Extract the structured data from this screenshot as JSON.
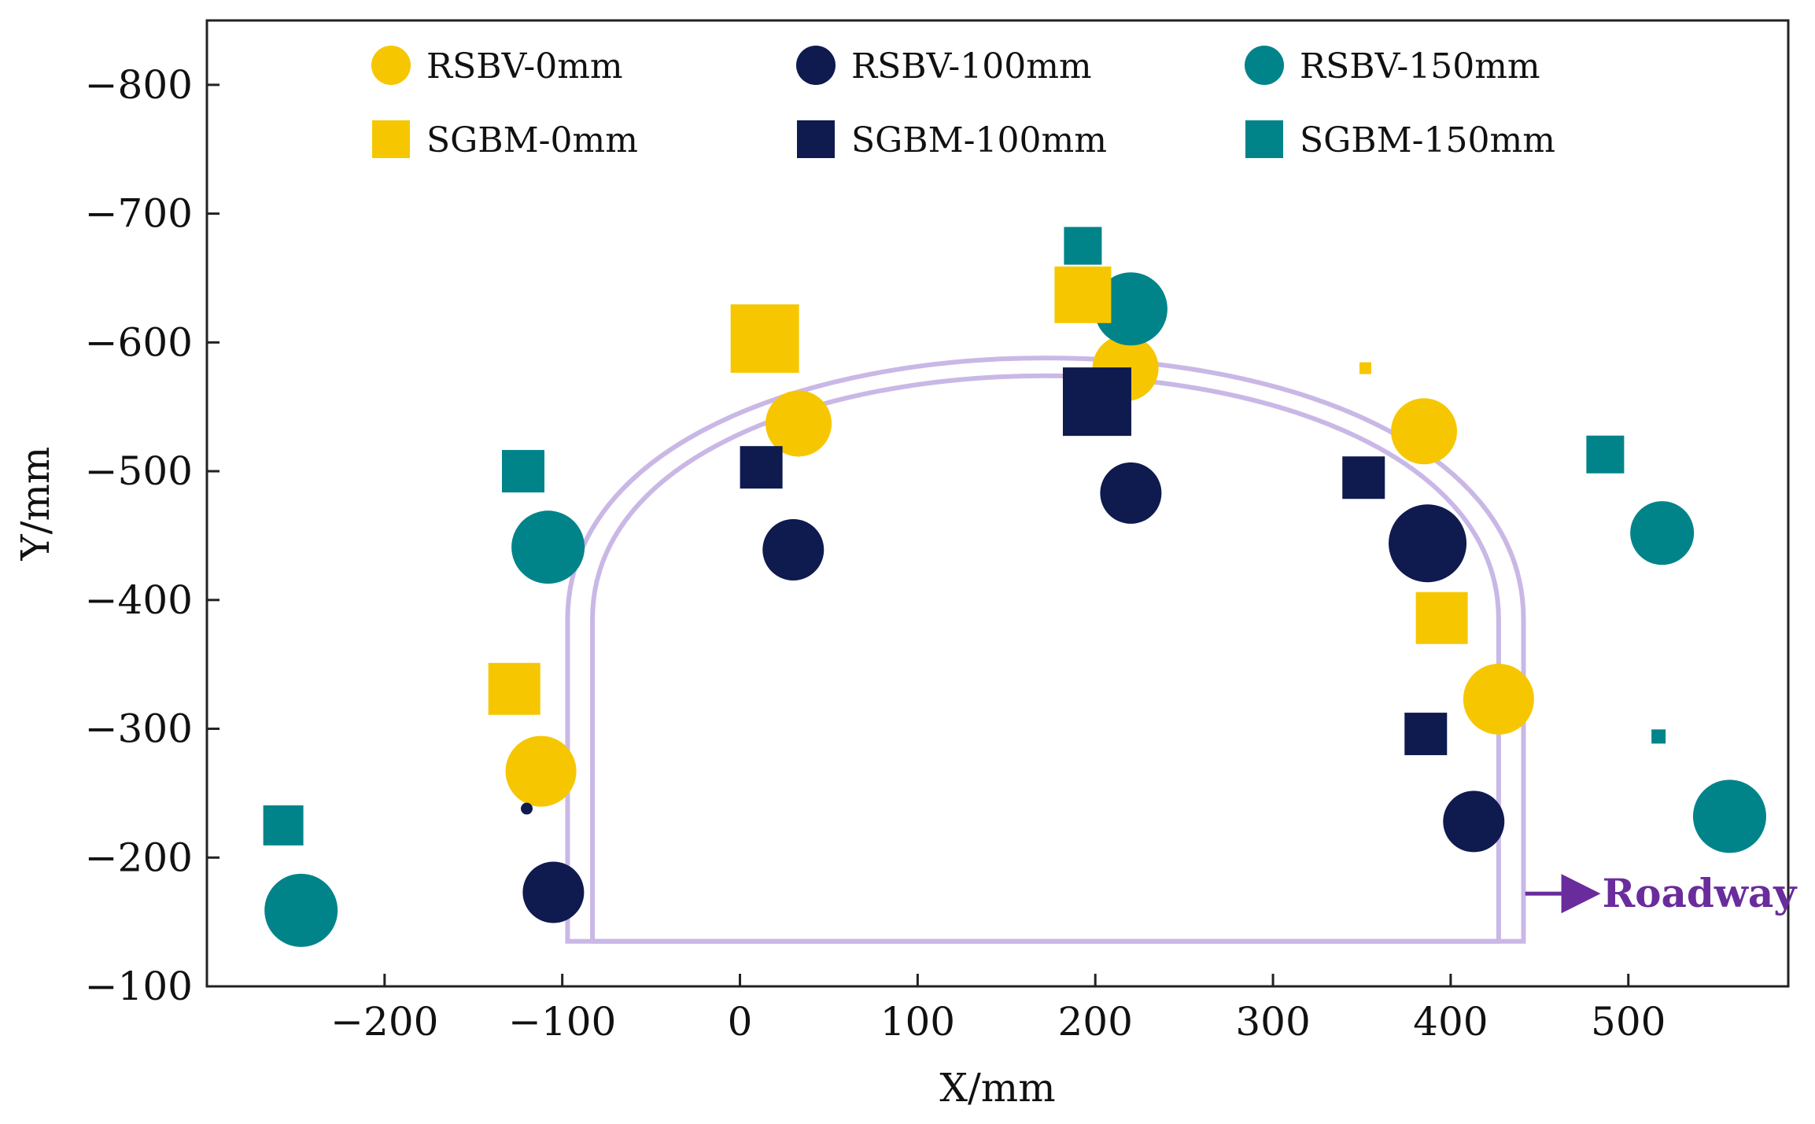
{
  "chart_data": {
    "type": "scatter",
    "title": "",
    "xlabel": "X/mm",
    "ylabel": "Y/mm",
    "xlim": [
      -300,
      590
    ],
    "ylim": [
      -100,
      -850
    ],
    "xticks": [
      -200,
      -100,
      0,
      100,
      200,
      300,
      400,
      500
    ],
    "yticks": [
      -100,
      -200,
      -300,
      -400,
      -500,
      -600,
      -700,
      -800
    ],
    "grid": false,
    "legend_position": "top",
    "colors": {
      "yellow": "#f6c700",
      "navy": "#0f1a4f",
      "teal": "#00848a",
      "roadway": "#c9b8e6",
      "annotation": "#6a2c9c"
    },
    "series": [
      {
        "name": "RSBV-0mm",
        "marker": "circle",
        "color": "#f6c700",
        "points": [
          {
            "x": -112,
            "y": -267,
            "size": 3.0
          },
          {
            "x": 33,
            "y": -537,
            "size": 2.8
          },
          {
            "x": 217,
            "y": -580,
            "size": 2.8
          },
          {
            "x": 385,
            "y": -531,
            "size": 2.8
          },
          {
            "x": 427,
            "y": -323,
            "size": 3.0
          }
        ]
      },
      {
        "name": "RSBV-100mm",
        "marker": "circle",
        "color": "#0f1a4f",
        "points": [
          {
            "x": -105,
            "y": -173,
            "size": 2.6
          },
          {
            "x": 30,
            "y": -439,
            "size": 2.6
          },
          {
            "x": 220,
            "y": -483,
            "size": 2.6
          },
          {
            "x": 387,
            "y": -444,
            "size": 3.3
          },
          {
            "x": 413,
            "y": -228,
            "size": 2.6
          },
          {
            "x": -120,
            "y": -238,
            "size": 0.5
          }
        ]
      },
      {
        "name": "RSBV-150mm",
        "marker": "circle",
        "color": "#00848a",
        "points": [
          {
            "x": -247,
            "y": -159,
            "size": 3.1
          },
          {
            "x": -108,
            "y": -441,
            "size": 3.1
          },
          {
            "x": 220,
            "y": -626,
            "size": 3.1
          },
          {
            "x": 519,
            "y": -452,
            "size": 2.7
          },
          {
            "x": 557,
            "y": -232,
            "size": 3.1
          }
        ]
      },
      {
        "name": "SGBM-0mm",
        "marker": "square",
        "color": "#f6c700",
        "points": [
          {
            "x": -127,
            "y": -331,
            "size": 2.2
          },
          {
            "x": 14,
            "y": -603,
            "size": 2.9
          },
          {
            "x": 193,
            "y": -637,
            "size": 2.4
          },
          {
            "x": 395,
            "y": -386,
            "size": 2.2
          },
          {
            "x": 352,
            "y": -580,
            "size": 0.5
          }
        ]
      },
      {
        "name": "SGBM-100mm",
        "marker": "square",
        "color": "#0f1a4f",
        "points": [
          {
            "x": 12,
            "y": -503,
            "size": 1.8
          },
          {
            "x": 201,
            "y": -554,
            "size": 2.9
          },
          {
            "x": 351,
            "y": -495,
            "size": 1.8
          },
          {
            "x": 386,
            "y": -296,
            "size": 1.8
          }
        ]
      },
      {
        "name": "SGBM-150mm",
        "marker": "square",
        "color": "#00848a",
        "points": [
          {
            "x": -122,
            "y": -500,
            "size": 1.8
          },
          {
            "x": -257,
            "y": -225,
            "size": 1.7
          },
          {
            "x": 193,
            "y": -675,
            "size": 1.6
          },
          {
            "x": 487,
            "y": -513,
            "size": 1.6
          },
          {
            "x": 517,
            "y": -294,
            "size": 0.6
          }
        ]
      }
    ],
    "roadway": {
      "outer": {
        "x_left": -97,
        "x_right": 441,
        "y_bottom": -135,
        "y_wall_top": -385,
        "y_crown": -590
      },
      "inner": {
        "x_left": -83,
        "x_right": 427,
        "y_bottom": -135,
        "y_wall_top": -385,
        "y_crown": -576
      }
    },
    "annotations": [
      {
        "text": "Roadway",
        "arrow_from": [
          442,
          -172
        ],
        "arrow_to": [
          480,
          -172
        ]
      }
    ]
  }
}
